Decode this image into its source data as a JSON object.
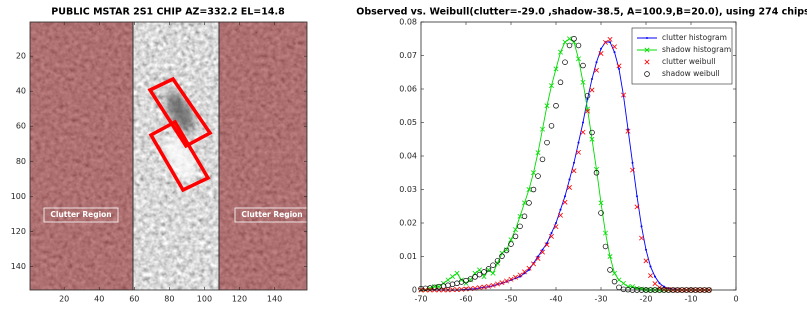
{
  "chart_data": [
    {
      "type": "image",
      "title": "PUBLIC MSTAR 2S1 CHIP AZ=332.2 EL=14.8",
      "xlim": [
        0.5,
        158.5
      ],
      "ylim": [
        0.5,
        153.5
      ],
      "y_reversed": true,
      "xticks": [
        20,
        40,
        60,
        80,
        100,
        120,
        140
      ],
      "yticks": [
        20,
        40,
        60,
        80,
        100,
        120,
        140
      ],
      "annotations": [
        "Clutter Region",
        "Clutter Region"
      ]
    },
    {
      "type": "line",
      "title": "Observed vs. Weibull(clutter=-29.0 ,shadow-38.5, A=100.9,B=20.0), using 274 chips",
      "xlim": [
        -70,
        0
      ],
      "ylim": [
        0,
        0.08
      ],
      "xticks": [
        -70,
        -60,
        -50,
        -40,
        -30,
        -20,
        -10,
        0
      ],
      "yticks": [
        0,
        0.01,
        0.02,
        0.03,
        0.04,
        0.05,
        0.06,
        0.07,
        0.08
      ],
      "legend": "upper right",
      "x": [
        -70,
        -69,
        -68,
        -67,
        -66,
        -65,
        -64,
        -63,
        -62,
        -61,
        -60,
        -59,
        -58,
        -57,
        -56,
        -55,
        -54,
        -53,
        -52,
        -51,
        -50,
        -49,
        -48,
        -47,
        -46,
        -45,
        -44,
        -43,
        -42,
        -41,
        -40,
        -39,
        -38,
        -37,
        -36,
        -35,
        -34,
        -33,
        -32,
        -31,
        -30,
        -29,
        -28,
        -27,
        -26,
        -25,
        -24,
        -23,
        -22,
        -21,
        -20,
        -19,
        -18,
        -17,
        -16,
        -15,
        -14,
        -13,
        -12,
        -11,
        -10,
        -9,
        -8,
        -7,
        -6
      ],
      "series": [
        {
          "name": "clutter histogram",
          "color": "#0000ff",
          "line": true,
          "marker": "dot",
          "values": [
            0,
            0,
            0,
            0,
            0,
            0,
            0,
            0,
            0,
            0.0001,
            0.0002,
            0.0003,
            0.0004,
            0.0006,
            0.0008,
            0.001,
            0.0013,
            0.0017,
            0.002,
            0.0025,
            0.003,
            0.0035,
            0.004,
            0.005,
            0.006,
            0.008,
            0.01,
            0.012,
            0.014,
            0.017,
            0.02,
            0.024,
            0.028,
            0.033,
            0.038,
            0.044,
            0.05,
            0.057,
            0.063,
            0.068,
            0.072,
            0.074,
            0.074,
            0.071,
            0.066,
            0.058,
            0.048,
            0.038,
            0.028,
            0.019,
            0.012,
            0.007,
            0.004,
            0.002,
            0.001,
            0.0005,
            0.0002,
            0.0001,
            0,
            0,
            0,
            0,
            0,
            0,
            0
          ]
        },
        {
          "name": "shadow histogram",
          "color": "#00dd00",
          "line": true,
          "marker": "x",
          "values": [
            0,
            0,
            0.0005,
            0.001,
            0.001,
            0.002,
            0.003,
            0.004,
            0.005,
            0.003,
            0.002,
            0.003,
            0.005,
            0.006,
            0.004,
            0.006,
            0.005,
            0.008,
            0.011,
            0.012,
            0.015,
            0.018,
            0.022,
            0.026,
            0.03,
            0.035,
            0.041,
            0.048,
            0.055,
            0.061,
            0.066,
            0.071,
            0.074,
            0.075,
            0.074,
            0.069,
            0.062,
            0.054,
            0.045,
            0.036,
            0.026,
            0.017,
            0.01,
            0.005,
            0.003,
            0.002,
            0.001,
            0.001,
            0.0005,
            0.0003,
            0,
            0,
            0,
            0,
            0,
            0,
            0,
            0,
            0,
            0,
            0,
            0,
            0,
            0,
            0
          ]
        },
        {
          "name": "clutter weibull",
          "color": "#ff0000",
          "line": false,
          "marker": "x",
          "values": [
            0,
            0,
            0,
            0,
            0,
            0,
            0,
            0.0001,
            0.0001,
            0.0002,
            0.0003,
            0.0004,
            0.0005,
            0.0007,
            0.0009,
            0.0011,
            0.0014,
            0.0018,
            0.0022,
            0.0027,
            0.0032,
            0.0038,
            0.0045,
            0.0054,
            0.0065,
            0.0078,
            0.0094,
            0.0113,
            0.0135,
            0.016,
            0.0189,
            0.0223,
            0.0262,
            0.0306,
            0.0356,
            0.0411,
            0.0471,
            0.0534,
            0.0597,
            0.0656,
            0.0706,
            0.0739,
            0.0748,
            0.0726,
            0.0669,
            0.0582,
            0.0474,
            0.0358,
            0.0248,
            0.0155,
            0.0087,
            0.0043,
            0.0019,
            0.0007,
            0.0002,
            0.0001,
            0,
            0,
            0,
            0,
            0,
            0,
            0,
            0,
            0
          ]
        },
        {
          "name": "shadow weibull",
          "color": "#000000",
          "line": false,
          "marker": "o",
          "values": [
            0.0004,
            0.0005,
            0.0006,
            0.0008,
            0.001,
            0.0012,
            0.0014,
            0.0017,
            0.002,
            0.0024,
            0.0028,
            0.0033,
            0.0039,
            0.0046,
            0.0054,
            0.0063,
            0.0074,
            0.0087,
            0.0101,
            0.0118,
            0.0137,
            0.016,
            0.019,
            0.022,
            0.026,
            0.03,
            0.034,
            0.039,
            0.044,
            0.049,
            0.055,
            0.062,
            0.068,
            0.073,
            0.075,
            0.073,
            0.067,
            0.058,
            0.047,
            0.035,
            0.023,
            0.013,
            0.006,
            0.0025,
            0.0008,
            0.0002,
            0.0001,
            0,
            0,
            0,
            0,
            0,
            0,
            0,
            0,
            0,
            0,
            0,
            0,
            0,
            0,
            0,
            0,
            0,
            0
          ]
        }
      ]
    }
  ]
}
